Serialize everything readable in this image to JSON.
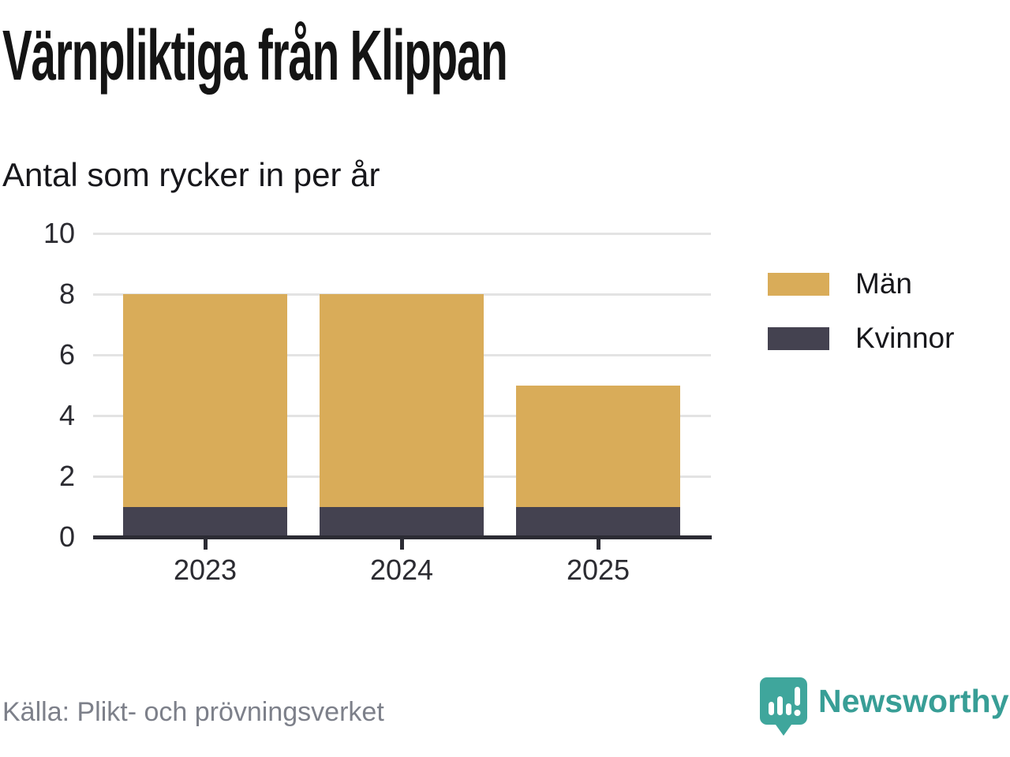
{
  "header": {
    "title": "Värnpliktiga från Klippan",
    "subtitle": "Antal som rycker in per år"
  },
  "footer": {
    "source": "Källa: Plikt- och prövningsverket",
    "brand": "Newsworthy",
    "brand_color": "#389e96",
    "logo_icon": "newsworthy-speech-bubble-bar-chart-icon"
  },
  "colors": {
    "men_bar": "#D9AC59",
    "women_bar": "#444250",
    "gridline": "#e3e3e3",
    "axis_line": "#2c2c34",
    "axis_text": "#2b2b31",
    "source_text": "#7d808a",
    "brand_teal": "#389e96"
  },
  "chart_data": {
    "type": "bar",
    "stacked": true,
    "title": "Värnpliktiga från Klippan",
    "subtitle": "Antal som rycker in per år",
    "categories": [
      "2023",
      "2024",
      "2025"
    ],
    "series": [
      {
        "name": "Män",
        "color": "#D9AC59",
        "values": [
          7,
          7,
          4
        ]
      },
      {
        "name": "Kvinnor",
        "color": "#444250",
        "values": [
          1,
          1,
          1
        ]
      }
    ],
    "stack_bottom_to_top": [
      "Kvinnor",
      "Män"
    ],
    "totals": [
      8,
      8,
      5
    ],
    "xlabel": "",
    "ylabel": "",
    "ylim": [
      0,
      10
    ],
    "yticks": [
      0,
      2,
      4,
      6,
      8,
      10
    ],
    "grid": "horizontal",
    "legend_position": "right",
    "source": "Källa: Plikt- och prövningsverket"
  }
}
